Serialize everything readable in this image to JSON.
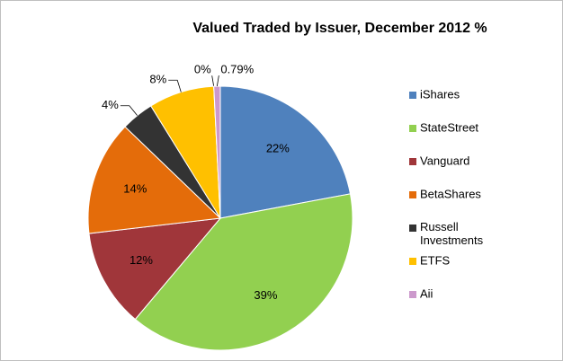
{
  "chart_data": {
    "type": "pie",
    "title": "Valued Traded by Issuer, December 2012 %",
    "categories": [
      "iShares",
      "StateStreet",
      "Vanguard",
      "BetaShares",
      "Russell Investments",
      "ETFS",
      null,
      "Aii"
    ],
    "values": [
      22,
      39,
      12,
      14,
      4,
      8,
      0,
      0.79
    ],
    "value_labels": [
      "22%",
      "39%",
      "12%",
      "14%",
      "4%",
      "8%",
      "0%",
      "0.79%"
    ],
    "colors": [
      "#4f81bd",
      "#92d050",
      "#a0363a",
      "#e46c0a",
      "#333333",
      "#ffc000",
      "#7f7f7f",
      "#cc99cc"
    ],
    "legend": "right"
  }
}
